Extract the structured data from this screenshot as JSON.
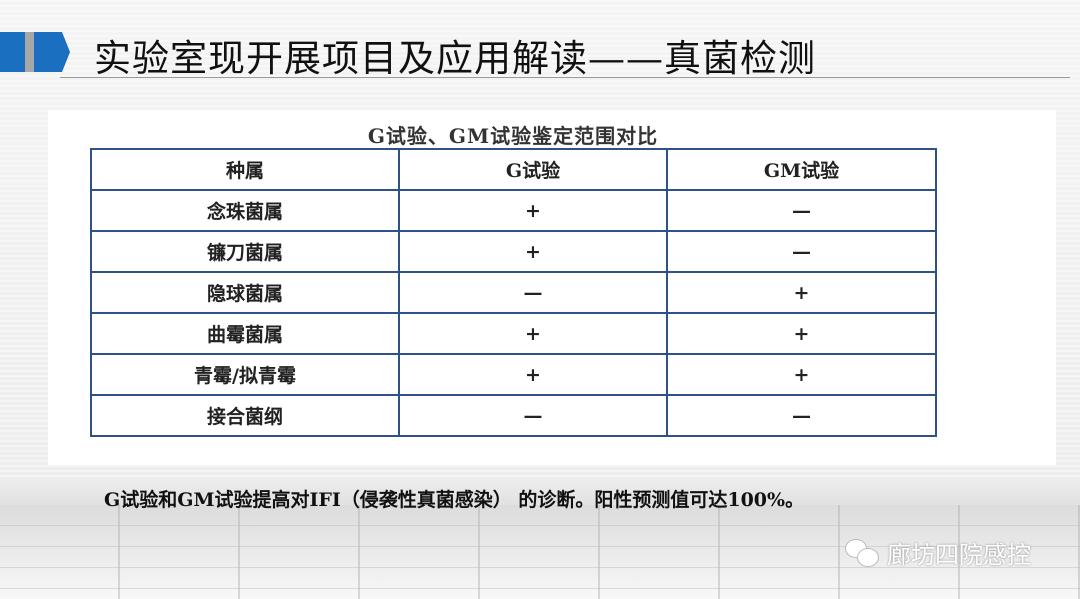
{
  "slide": {
    "title": "实验室现开展项目及应用解读——真菌检测",
    "accent_color": "#1a6fc0",
    "table_caption": "G试验、GM试验鉴定范围对比",
    "table": {
      "headers": [
        "种属",
        "G试验",
        "GM试验"
      ],
      "rows": [
        [
          "念珠菌属",
          "+",
          "—"
        ],
        [
          "镰刀菌属",
          "+",
          "—"
        ],
        [
          "隐球菌属",
          "—",
          "+"
        ],
        [
          "曲霉菌属",
          "+",
          "+"
        ],
        [
          "青霉/拟青霉",
          "+",
          "+"
        ],
        [
          "接合菌纲",
          "—",
          "—"
        ]
      ]
    },
    "note": "G试验和GM试验提高对IFI（侵袭性真菌感染） 的诊断。阳性预测值可达100%。"
  },
  "watermark": {
    "icon": "wechat-icon",
    "text": "廊坊四院感控"
  }
}
